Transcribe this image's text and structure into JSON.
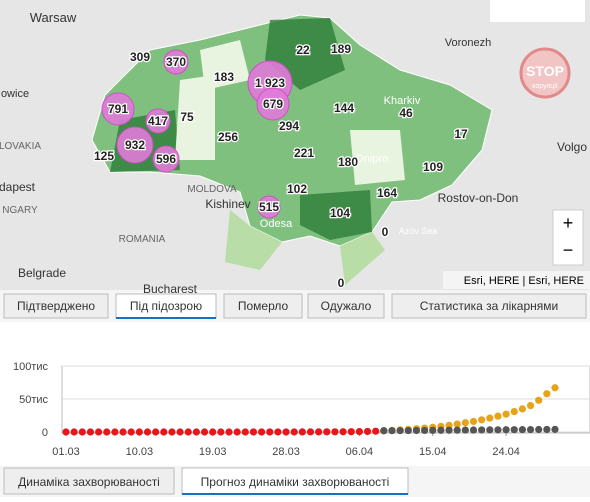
{
  "map": {
    "places": [
      "Warsaw",
      "Voronezh",
      "owice",
      "Volgo",
      "LOVAKIA",
      "dapest",
      "NGARY",
      "MOLDOVA",
      "Kishinev",
      "Odesa",
      "ROMANIA",
      "Rostov-on-Don",
      "Azov Sea",
      "Belgrade",
      "Bucharest",
      "Kharkiv",
      "Dnipro"
    ],
    "regions": [
      "309",
      "370",
      "183",
      "1 923",
      "679",
      "22",
      "189",
      "791",
      "417",
      "75",
      "144",
      "46",
      "256",
      "294",
      "932",
      "125",
      "596",
      "221",
      "180",
      "17",
      "109",
      "164",
      "102",
      "515",
      "104",
      "0",
      "0"
    ],
    "attribution": "Esri, HERE | Esri, HERE",
    "stamp": "STOP",
    "stamp_sub": "корупції"
  },
  "tabs": [
    "Підтверджено",
    "Під підозрою",
    "Померло",
    "Одужало",
    "Статистика за лікарнями"
  ],
  "bottom_tabs": [
    "Динаміка захворюваності",
    "Прогноз динаміки захворюваності"
  ],
  "chart_data": {
    "type": "scatter",
    "categories": [
      "01.03",
      null,
      null,
      null,
      null,
      null,
      null,
      null,
      null,
      "10.03",
      null,
      null,
      null,
      null,
      null,
      null,
      null,
      null,
      "19.03",
      null,
      null,
      null,
      null,
      null,
      null,
      null,
      null,
      "28.03",
      null,
      null,
      null,
      null,
      null,
      null,
      null,
      null,
      "06.04",
      null,
      null,
      null,
      null,
      null,
      null,
      null,
      null,
      "15.04",
      null,
      null,
      null,
      null,
      null,
      null,
      null,
      null,
      "24.04",
      null,
      null,
      null,
      null,
      null,
      null
    ],
    "ylim": [
      0,
      100
    ],
    "yticks": [
      {
        "value": 0,
        "label": "0"
      },
      {
        "value": 50,
        "label": "50тис"
      },
      {
        "value": 100,
        "label": "100тис"
      }
    ],
    "series": [
      {
        "color": "#e8161b",
        "values": [
          0,
          0,
          0,
          0,
          0,
          0,
          0,
          0,
          0,
          0,
          0,
          0,
          0,
          0,
          0,
          0,
          0,
          0,
          0,
          0,
          0.01,
          0.01,
          0.02,
          0.03,
          0.04,
          0.05,
          0.07,
          0.09,
          0.11,
          0.14,
          0.17,
          0.21,
          0.26,
          0.32,
          0.4,
          0.5,
          0.64,
          0.8,
          1.2,
          1.9,
          null,
          null,
          null,
          null,
          null,
          null,
          null,
          null,
          null,
          null,
          null,
          null,
          null,
          null,
          null,
          null,
          null,
          null,
          null,
          null,
          null
        ]
      },
      {
        "color": "#e8a317",
        "values": [
          null,
          null,
          null,
          null,
          null,
          null,
          null,
          null,
          null,
          null,
          null,
          null,
          null,
          null,
          null,
          null,
          null,
          null,
          null,
          null,
          null,
          null,
          null,
          null,
          null,
          null,
          null,
          null,
          null,
          null,
          null,
          null,
          null,
          null,
          null,
          null,
          null,
          null,
          null,
          1.9,
          2.5,
          3.2,
          4,
          5,
          6,
          7.2,
          8.5,
          10,
          12,
          14,
          16,
          18.5,
          21,
          24,
          27,
          31,
          35,
          40,
          48,
          58,
          67
        ]
      },
      {
        "color": "#555555",
        "values": [
          null,
          null,
          null,
          null,
          null,
          null,
          null,
          null,
          null,
          null,
          null,
          null,
          null,
          null,
          null,
          null,
          null,
          null,
          null,
          null,
          null,
          null,
          null,
          null,
          null,
          null,
          null,
          null,
          null,
          null,
          null,
          null,
          null,
          null,
          null,
          null,
          null,
          null,
          null,
          1.9,
          2,
          2.1,
          2.2,
          2.3,
          2.4,
          2.5,
          2.6,
          2.7,
          2.8,
          2.9,
          3,
          3.1,
          3.2,
          3.3,
          3.4,
          3.5,
          3.6,
          3.7,
          3.8,
          3.9,
          4
        ]
      }
    ]
  }
}
